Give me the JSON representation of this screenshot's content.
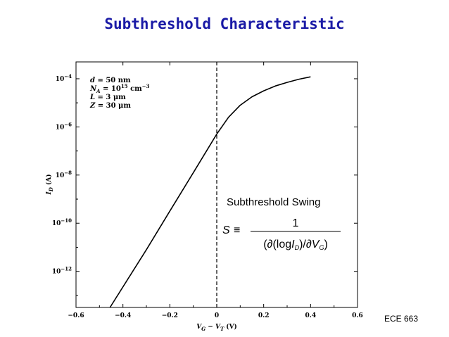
{
  "slide": {
    "title": "Subthreshold Characteristic",
    "footer": "ECE 663"
  },
  "colors": {
    "title": "#1a1aa6",
    "ink": "#000000"
  },
  "chart_data": {
    "type": "line",
    "title": "",
    "xlabel_parts": {
      "v1": "V",
      "v1sub": "G",
      "minus": " − ",
      "v2": "V",
      "v2sub": "T",
      "unit": " (V)"
    },
    "ylabel_parts": {
      "i": "I",
      "isub": "D",
      "unit": " (A)"
    },
    "xlim": [
      -0.6,
      0.6
    ],
    "ylim_log10": [
      -13.5,
      -3.3
    ],
    "yscale": "log",
    "x_ticks": [
      {
        "v": -0.6,
        "label": "−0.6"
      },
      {
        "v": -0.4,
        "label": "−0.4"
      },
      {
        "v": -0.2,
        "label": "−0.2"
      },
      {
        "v": 0,
        "label": "0"
      },
      {
        "v": 0.2,
        "label": "0.2"
      },
      {
        "v": 0.4,
        "label": "0.4"
      },
      {
        "v": 0.6,
        "label": "0.6"
      }
    ],
    "y_ticks": [
      {
        "v": -4,
        "base": "10",
        "exp": "−4"
      },
      {
        "v": -6,
        "base": "10",
        "exp": "−6"
      },
      {
        "v": -8,
        "base": "10",
        "exp": "−8"
      },
      {
        "v": -10,
        "base": "10",
        "exp": "−10"
      },
      {
        "v": -12,
        "base": "10",
        "exp": "−12"
      }
    ],
    "series": [
      {
        "x": [
          -0.455,
          -0.3,
          -0.2,
          -0.1,
          0.0,
          0.05,
          0.1,
          0.15,
          0.2,
          0.25,
          0.3,
          0.35,
          0.4
        ],
        "log10_y": [
          -13.6,
          -11.1,
          -9.5,
          -7.9,
          -6.3,
          -5.6,
          -5.1,
          -4.75,
          -4.5,
          -4.3,
          -4.15,
          -4.02,
          -3.92
        ]
      }
    ],
    "vline_x": 0,
    "annotations": [
      {
        "sym": "d",
        "rest": " = 50 nm"
      },
      {
        "sym": "N",
        "sub": "A",
        "rest": " = 10",
        "sup": "15",
        "tail": " cm",
        "tailsup": "−3"
      },
      {
        "sym": "L",
        "rest": " = 3 μm"
      },
      {
        "sym": "Z",
        "rest": " = 30 μm"
      }
    ],
    "formula": {
      "heading": "Subthreshold Swing",
      "lhs": "S",
      "equiv": "≡",
      "numerator": "1",
      "den_open": "(∂(log",
      "den_i": "I",
      "den_isub": "D",
      "den_mid": ")/∂",
      "den_v": "V",
      "den_vsub": "G",
      "den_close": ")"
    }
  }
}
